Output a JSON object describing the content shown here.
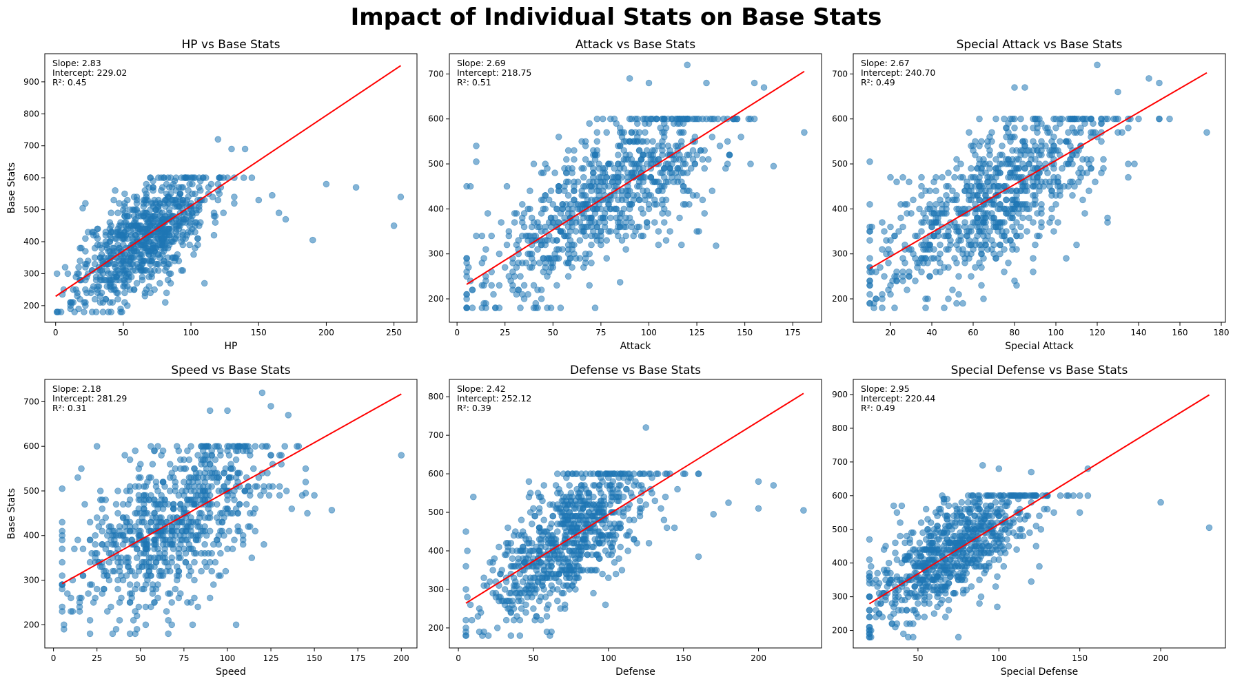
{
  "figure_title": "Impact of Individual Stats on Base Stats",
  "point_color": "#1f77b4",
  "line_color": "#ff0000",
  "chart_data": [
    {
      "type": "scatter",
      "title": "HP vs Base Stats",
      "xlabel": "HP",
      "ylabel": "Base Stats",
      "xlim": [
        -8,
        267
      ],
      "ylim": [
        148,
        988
      ],
      "xticks": [
        0,
        50,
        100,
        150,
        200,
        250
      ],
      "yticks": [
        200,
        300,
        400,
        500,
        600,
        700,
        800,
        900
      ],
      "slope_text": "Slope: 2.83",
      "intercept_text": "Intercept: 229.02",
      "r2_text": "R²: 0.45",
      "slope": 2.83,
      "intercept": 229.02,
      "fit_x": [
        0,
        255
      ],
      "seed": 11,
      "n": 800,
      "x_center": 65,
      "x_spread": 24,
      "x_min": 1,
      "x_max": 150,
      "noise": 80,
      "outliers": [
        [
          190,
          405
        ],
        [
          200,
          580
        ],
        [
          222,
          570
        ],
        [
          250,
          450
        ],
        [
          255,
          540
        ],
        [
          160,
          545
        ],
        [
          170,
          470
        ],
        [
          165,
          490
        ],
        [
          145,
          600
        ],
        [
          120,
          720
        ],
        [
          110,
          270
        ],
        [
          140,
          690
        ],
        [
          130,
          690
        ],
        [
          20,
          505
        ],
        [
          5,
          235
        ]
      ]
    },
    {
      "type": "scatter",
      "title": "Attack vs Base Stats",
      "xlabel": "Attack",
      "ylabel": "",
      "xlim": [
        -4,
        190
      ],
      "ylim": [
        148,
        745
      ],
      "xticks": [
        0,
        25,
        50,
        75,
        100,
        125,
        150,
        175
      ],
      "yticks": [
        200,
        300,
        400,
        500,
        600,
        700
      ],
      "slope_text": "Slope: 2.69",
      "intercept_text": "Intercept: 218.75",
      "r2_text": "R²: 0.51",
      "slope": 2.69,
      "intercept": 218.75,
      "fit_x": [
        5,
        181
      ],
      "seed": 22,
      "n": 800,
      "x_center": 78,
      "x_spread": 30,
      "x_min": 5,
      "x_max": 160,
      "noise": 75,
      "outliers": [
        [
          5,
          450
        ],
        [
          10,
          540
        ],
        [
          10,
          505
        ],
        [
          181,
          570
        ],
        [
          165,
          495
        ],
        [
          120,
          720
        ],
        [
          90,
          690
        ],
        [
          100,
          680
        ],
        [
          130,
          680
        ],
        [
          155,
          680
        ],
        [
          160,
          670
        ],
        [
          135,
          318
        ],
        [
          125,
          350
        ],
        [
          85,
          237
        ]
      ]
    },
    {
      "type": "scatter",
      "title": "Special Attack vs Base Stats",
      "xlabel": "Special Attack",
      "ylabel": "",
      "xlim": [
        2,
        182
      ],
      "ylim": [
        148,
        745
      ],
      "xticks": [
        20,
        40,
        60,
        80,
        100,
        120,
        140,
        160,
        180
      ],
      "yticks": [
        200,
        300,
        400,
        500,
        600,
        700
      ],
      "slope_text": "Slope: 2.67",
      "intercept_text": "Intercept: 240.70",
      "r2_text": "R²: 0.49",
      "slope": 2.67,
      "intercept": 240.7,
      "fit_x": [
        10,
        173
      ],
      "seed": 33,
      "n": 800,
      "x_center": 70,
      "x_spread": 28,
      "x_min": 10,
      "x_max": 150,
      "noise": 75,
      "outliers": [
        [
          10,
          505
        ],
        [
          20,
          470
        ],
        [
          173,
          570
        ],
        [
          150,
          680
        ],
        [
          145,
          690
        ],
        [
          120,
          720
        ],
        [
          130,
          660
        ],
        [
          125,
          370
        ],
        [
          110,
          320
        ],
        [
          105,
          290
        ],
        [
          85,
          670
        ],
        [
          80,
          670
        ],
        [
          155,
          600
        ]
      ]
    },
    {
      "type": "scatter",
      "title": "Speed vs Base Stats",
      "xlabel": "Speed",
      "ylabel": "Base Stats",
      "xlim": [
        -5,
        209
      ],
      "ylim": [
        148,
        750
      ],
      "xticks": [
        0,
        25,
        50,
        75,
        100,
        125,
        150,
        175,
        200
      ],
      "yticks": [
        200,
        300,
        400,
        500,
        600,
        700
      ],
      "slope_text": "Slope: 2.18",
      "intercept_text": "Intercept: 281.29",
      "r2_text": "R²: 0.31",
      "slope": 2.18,
      "intercept": 281.29,
      "fit_x": [
        5,
        200
      ],
      "seed": 44,
      "n": 800,
      "x_center": 68,
      "x_spread": 29,
      "x_min": 5,
      "x_max": 150,
      "noise": 90,
      "outliers": [
        [
          5,
          505
        ],
        [
          5,
          410
        ],
        [
          5,
          390
        ],
        [
          200,
          580
        ],
        [
          160,
          457
        ],
        [
          145,
          495
        ],
        [
          150,
          490
        ],
        [
          120,
          720
        ],
        [
          125,
          690
        ],
        [
          135,
          670
        ],
        [
          90,
          680
        ],
        [
          100,
          680
        ],
        [
          80,
          200
        ]
      ]
    },
    {
      "type": "scatter",
      "title": "Defense vs Base Stats",
      "xlabel": "Defense",
      "ylabel": "",
      "xlim": [
        -6,
        242
      ],
      "ylim": [
        148,
        845
      ],
      "xticks": [
        0,
        50,
        100,
        150,
        200
      ],
      "yticks": [
        200,
        300,
        400,
        500,
        600,
        700,
        800
      ],
      "slope_text": "Slope: 2.42",
      "intercept_text": "Intercept: 252.12",
      "r2_text": "R²: 0.39",
      "slope": 2.42,
      "intercept": 252.12,
      "fit_x": [
        5,
        230
      ],
      "seed": 55,
      "n": 800,
      "x_center": 72,
      "x_spread": 27,
      "x_min": 5,
      "x_max": 160,
      "noise": 78,
      "outliers": [
        [
          5,
          450
        ],
        [
          10,
          540
        ],
        [
          5,
          220
        ],
        [
          230,
          505
        ],
        [
          210,
          570
        ],
        [
          200,
          580
        ],
        [
          200,
          510
        ],
        [
          180,
          525
        ],
        [
          170,
          495
        ],
        [
          160,
          600
        ],
        [
          150,
          600
        ],
        [
          160,
          385
        ],
        [
          125,
          720
        ]
      ]
    },
    {
      "type": "scatter",
      "title": "Special Defense vs Base Stats",
      "xlabel": "Special Defense",
      "ylabel": "",
      "xlim": [
        10,
        240
      ],
      "ylim": [
        148,
        945
      ],
      "xticks": [
        50,
        100,
        150,
        200
      ],
      "yticks": [
        200,
        300,
        400,
        500,
        600,
        700,
        800,
        900
      ],
      "slope_text": "Slope: 2.95",
      "intercept_text": "Intercept: 220.44",
      "r2_text": "R²: 0.49",
      "slope": 2.95,
      "intercept": 220.44,
      "fit_x": [
        20,
        230
      ],
      "seed": 66,
      "n": 800,
      "x_center": 70,
      "x_spread": 25,
      "x_min": 20,
      "x_max": 155,
      "noise": 75,
      "outliers": [
        [
          20,
          470
        ],
        [
          230,
          505
        ],
        [
          200,
          580
        ],
        [
          155,
          680
        ],
        [
          150,
          600
        ],
        [
          150,
          550
        ],
        [
          120,
          345
        ],
        [
          110,
          600
        ],
        [
          100,
          680
        ],
        [
          120,
          670
        ],
        [
          90,
          690
        ],
        [
          35,
          570
        ],
        [
          40,
          570
        ]
      ]
    }
  ]
}
